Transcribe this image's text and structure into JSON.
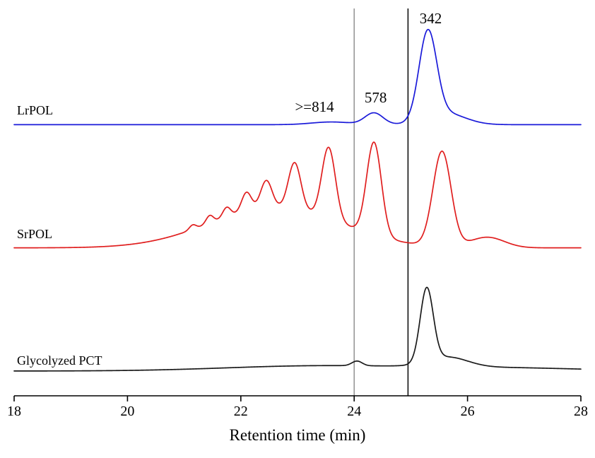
{
  "figure": {
    "background": "#ffffff",
    "text_color": "#000000"
  },
  "chart_data": {
    "type": "line",
    "title": "",
    "subtitle": "",
    "xlabel": "Retention time (min)",
    "ylabel": "",
    "y_axis_note": "arbitrary intensity, no y scale shown; three stacked chromatogram traces",
    "x_range": [
      18,
      28
    ],
    "x_ticks": [
      18,
      20,
      22,
      24,
      26,
      28
    ],
    "grid": false,
    "legend_position": "none (inline series labels at left of each trace)",
    "units_note": "peak heights and baselines are fractions of plot height; centers and sigmas are retention minutes",
    "series": [
      {
        "name": "LrPOL",
        "color": "#1a1ad9",
        "baseline": 0.7,
        "label": {
          "text": "LrPOL",
          "x": 18.05,
          "y": 0.726
        },
        "peaks": [
          {
            "center": 23.6,
            "height": 0.007,
            "sigma": 0.35
          },
          {
            "center": 24.35,
            "height": 0.03,
            "sigma": 0.16
          },
          {
            "center": 25.3,
            "height": 0.225,
            "sigma": 0.155
          },
          {
            "center": 25.6,
            "height": 0.03,
            "sigma": 0.35
          }
        ]
      },
      {
        "name": "SrPOL",
        "color": "#e01e1e",
        "baseline": 0.382,
        "label": {
          "text": "SrPOL",
          "x": 18.05,
          "y": 0.407
        },
        "peaks": [
          {
            "center": 22.6,
            "height": 0.105,
            "sigma": 1.15
          },
          {
            "center": 21.15,
            "height": 0.012,
            "sigma": 0.06
          },
          {
            "center": 21.45,
            "height": 0.02,
            "sigma": 0.065
          },
          {
            "center": 21.75,
            "height": 0.025,
            "sigma": 0.07
          },
          {
            "center": 22.1,
            "height": 0.048,
            "sigma": 0.085
          },
          {
            "center": 22.45,
            "height": 0.07,
            "sigma": 0.1
          },
          {
            "center": 22.95,
            "height": 0.12,
            "sigma": 0.11
          },
          {
            "center": 23.55,
            "height": 0.185,
            "sigma": 0.12
          },
          {
            "center": 24.35,
            "height": 0.24,
            "sigma": 0.13
          },
          {
            "center": 25.55,
            "height": 0.245,
            "sigma": 0.16
          },
          {
            "center": 26.35,
            "height": 0.027,
            "sigma": 0.3
          }
        ]
      },
      {
        "name": "Glycolyzed PCT",
        "color": "#1a1a1a",
        "baseline": 0.064,
        "label": {
          "text": "Glycolyzed PCT",
          "x": 18.05,
          "y": 0.08
        },
        "peaks": [
          {
            "center": 23.3,
            "height": 0.013,
            "sigma": 1.6
          },
          {
            "center": 24.05,
            "height": 0.012,
            "sigma": 0.09
          },
          {
            "center": 25.28,
            "height": 0.19,
            "sigma": 0.115
          },
          {
            "center": 25.65,
            "height": 0.025,
            "sigma": 0.35
          },
          {
            "center": 26.5,
            "height": 0.008,
            "sigma": 1.5
          }
        ]
      }
    ],
    "vertical_lines": [
      {
        "x": 24.0,
        "color": "#8a8a8a",
        "width": 1.4
      },
      {
        "x": 24.95,
        "color": "#111111",
        "width": 1.6
      }
    ],
    "annotations": [
      {
        "text": ">=814",
        "x": 23.3,
        "y": 0.734
      },
      {
        "text": "578",
        "x": 24.38,
        "y": 0.757
      },
      {
        "text": "342",
        "x": 25.35,
        "y": 0.962
      }
    ]
  }
}
